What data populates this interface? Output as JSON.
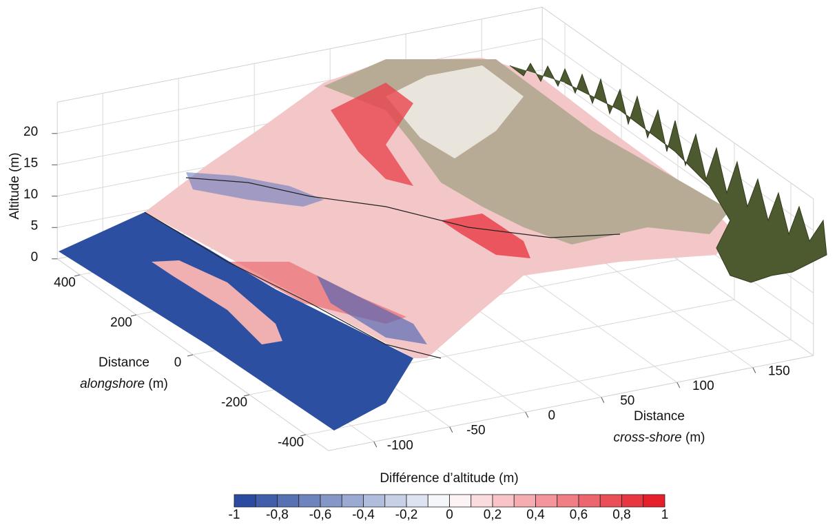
{
  "chart_data": {
    "type": "surface3d",
    "x_label": {
      "line1": "Distance",
      "italic": "alongshore",
      "unit": "(m)"
    },
    "y_label": {
      "line1": "Distance",
      "italic": "cross-shore",
      "unit": "(m)"
    },
    "z_label": "Altitude (m)",
    "xlim": [
      -480,
      480
    ],
    "xticks": [
      -400,
      -200,
      0,
      200,
      400
    ],
    "ylim": [
      -130,
      190
    ],
    "yticks": [
      -100,
      -50,
      0,
      50,
      100,
      150
    ],
    "zlim": [
      0,
      25
    ],
    "zticks": [
      0,
      5,
      10,
      15,
      20
    ],
    "grid": true,
    "colorbar": {
      "title": "Différence d’altitude (m)",
      "clim": [
        -1,
        1
      ],
      "levels": 20,
      "colors": [
        "#2a4b9f",
        "#ffffff",
        "#e5202b"
      ],
      "ticks": [
        -1,
        {
          "value": -0.8,
          "label": "-0,8"
        },
        {
          "value": -0.6,
          "label": "-0,6"
        },
        {
          "value": -0.4,
          "label": "-0,4"
        },
        {
          "value": -0.2,
          "label": "-0,2"
        },
        0,
        {
          "value": 0.2,
          "label": "0,2"
        },
        {
          "value": 0.4,
          "label": "0,4"
        },
        {
          "value": 0.6,
          "label": "0,6"
        },
        {
          "value": 0.8,
          "label": "0,8"
        },
        1
      ]
    }
  }
}
